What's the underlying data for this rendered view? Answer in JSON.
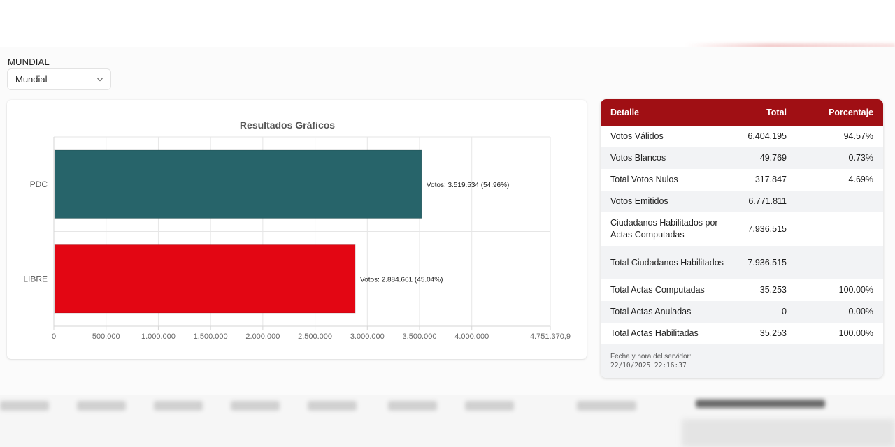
{
  "filter": {
    "label": "MUNDIAL",
    "selected": "Mundial"
  },
  "chart_data": {
    "type": "bar",
    "orientation": "horizontal",
    "title": "Resultados Gráficos",
    "categories": [
      "PDC",
      "LIBRE"
    ],
    "values": [
      3519534,
      2884661
    ],
    "data_labels": [
      "Votos: 3.519.534 (54.96%)",
      "Votos: 2.884.661 (45.04%)"
    ],
    "colors": [
      "#27646a",
      "#e30613"
    ],
    "xlim": [
      0,
      4751370.9
    ],
    "x_ticks": [
      0,
      500000,
      1000000,
      1500000,
      2000000,
      2500000,
      3000000,
      3500000,
      4000000,
      4751370.9
    ],
    "x_tick_labels": [
      "0",
      "500.000",
      "1.000.000",
      "1.500.000",
      "2.000.000",
      "2.500.000",
      "3.000.000",
      "3.500.000",
      "4.000.000",
      "4.751.370,9"
    ],
    "grid": true,
    "legend": "none"
  },
  "summary_table": {
    "headers": [
      "Detalle",
      "Total",
      "Porcentaje"
    ],
    "rows": [
      {
        "detail": "Votos Válidos",
        "total": "6.404.195",
        "percent": "94.57%"
      },
      {
        "detail": "Votos Blancos",
        "total": "49.769",
        "percent": "0.73%"
      },
      {
        "detail": "Total Votos Nulos",
        "total": "317.847",
        "percent": "4.69%"
      },
      {
        "detail": "Votos Emitidos",
        "total": "6.771.811",
        "percent": ""
      },
      {
        "detail": "Ciudadanos Habilitados por Actas Computadas",
        "total": "7.936.515",
        "percent": ""
      },
      {
        "detail": "Total Ciudadanos Habilitados",
        "total": "7.936.515",
        "percent": ""
      },
      {
        "detail": "Total Actas Computadas",
        "total": "35.253",
        "percent": "100.00%"
      },
      {
        "detail": "Total Actas Anuladas",
        "total": "0",
        "percent": "0.00%"
      },
      {
        "detail": "Total Actas Habilitadas",
        "total": "35.253",
        "percent": "100.00%"
      }
    ],
    "server_time_label": "Fecha y hora del servidor:",
    "server_time": "22/10/2025 22:16:37"
  },
  "theme": {
    "header_red": "#a00f14"
  }
}
